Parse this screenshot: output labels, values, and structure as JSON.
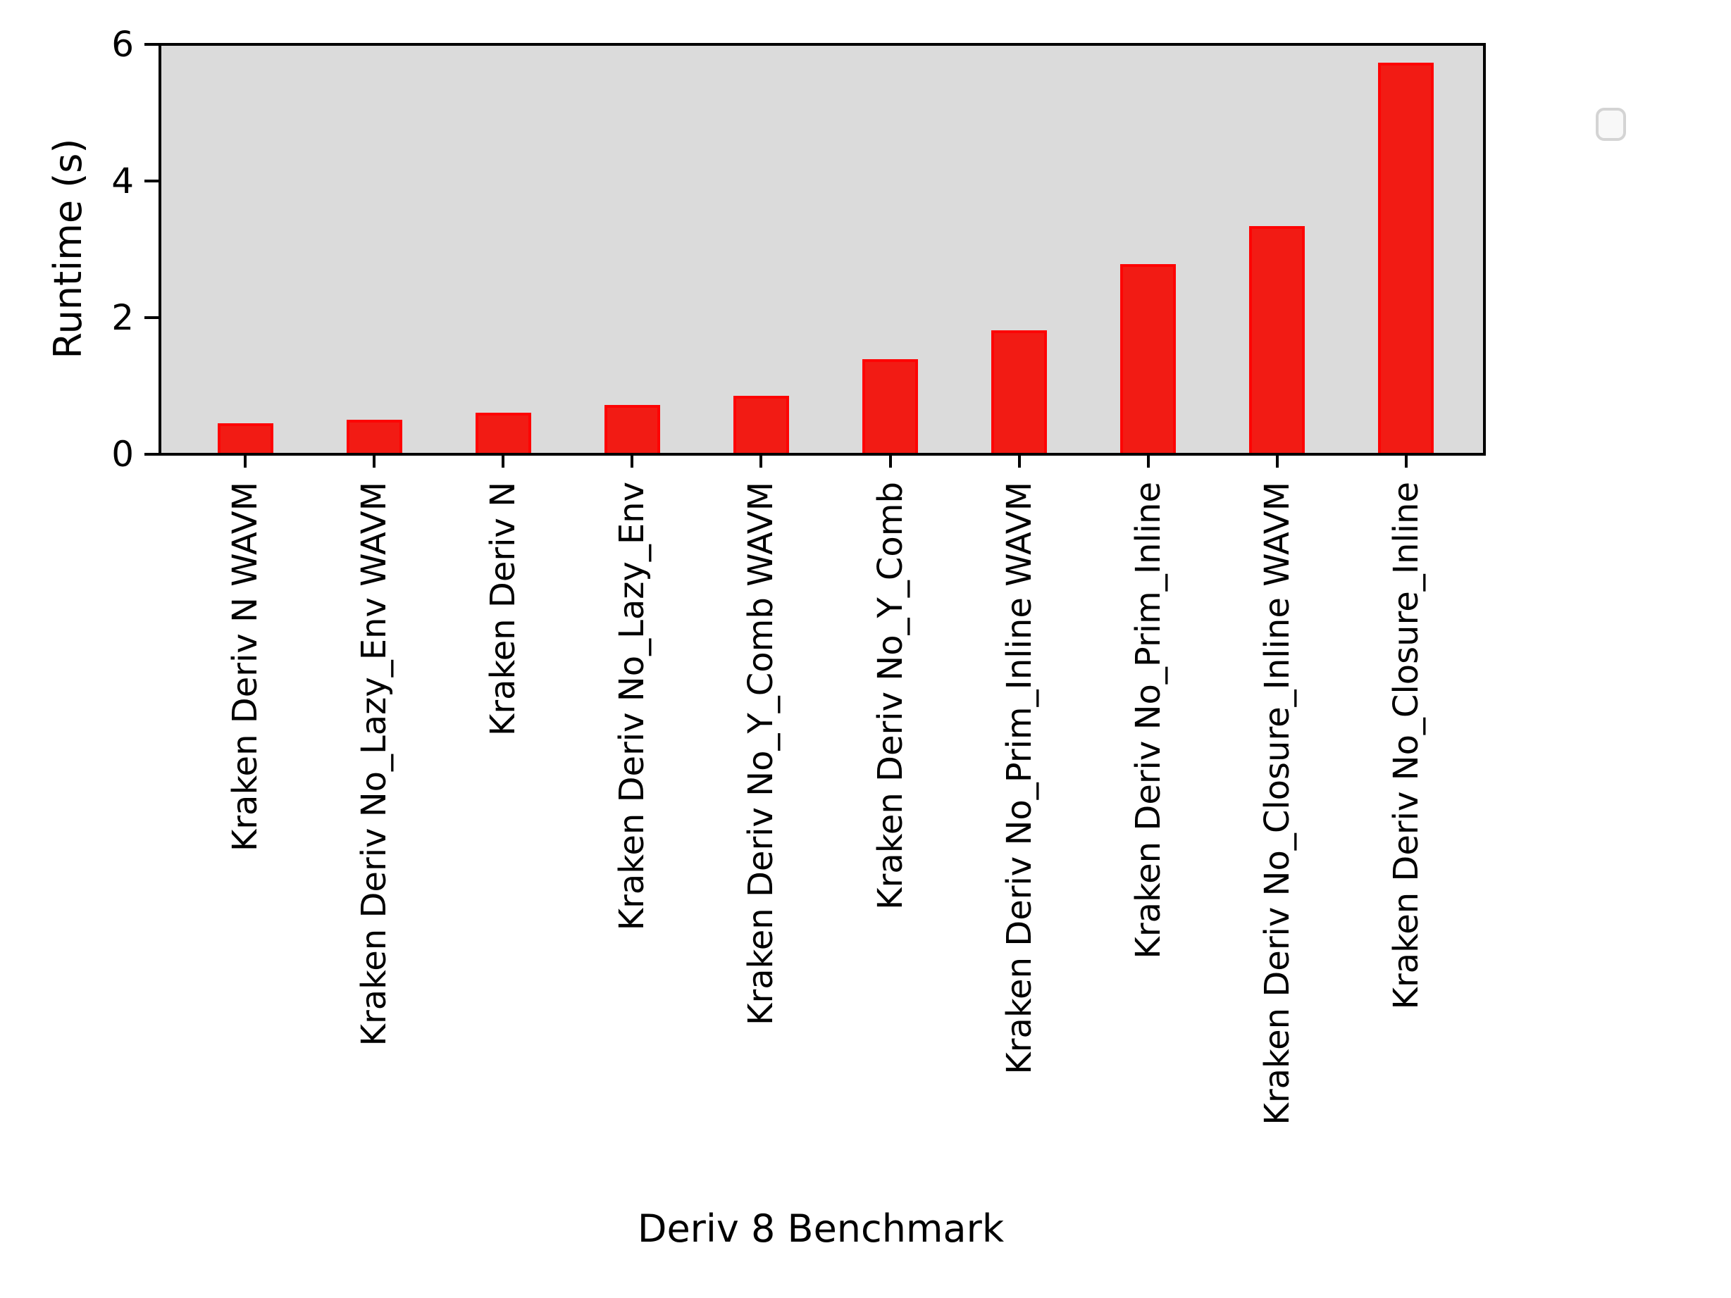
{
  "chart_data": {
    "type": "bar",
    "title": "",
    "xlabel": "Deriv 8 Benchmark",
    "ylabel": "Runtime (s)",
    "categories": [
      "Kraken Deriv N WAVM",
      "Kraken Deriv No_Lazy_Env WAVM",
      "Kraken Deriv N",
      "Kraken Deriv No_Lazy_Env",
      "Kraken Deriv No_Y_Comb WAVM",
      "Kraken Deriv No_Y_Comb",
      "Kraken Deriv No_Prim_Inline WAVM",
      "Kraken Deriv No_Prim_Inline",
      "Kraken Deriv No_Closure_Inline WAVM",
      "Kraken Deriv No_Closure_Inline"
    ],
    "series": [
      {
        "name": "Runtime",
        "values": [
          0.45,
          0.5,
          0.61,
          0.72,
          0.86,
          1.39,
          1.81,
          2.78,
          3.34,
          5.73
        ]
      }
    ],
    "yticks": [
      "0",
      "2",
      "4",
      "6"
    ],
    "ytick_values": [
      0,
      2,
      4,
      6
    ],
    "ylim": [
      0,
      6
    ],
    "grid": false,
    "legend": {
      "visible": true,
      "position": "upper right",
      "entries": []
    },
    "colors": {
      "bar_fill": "#f21b14",
      "bar_edge": "#fd0404",
      "plot_background": "#dbdbdb",
      "spine": "#000000",
      "text": "#000000",
      "legend_fill": "#f8f8f8",
      "legend_border": "#d4d4d4"
    }
  }
}
